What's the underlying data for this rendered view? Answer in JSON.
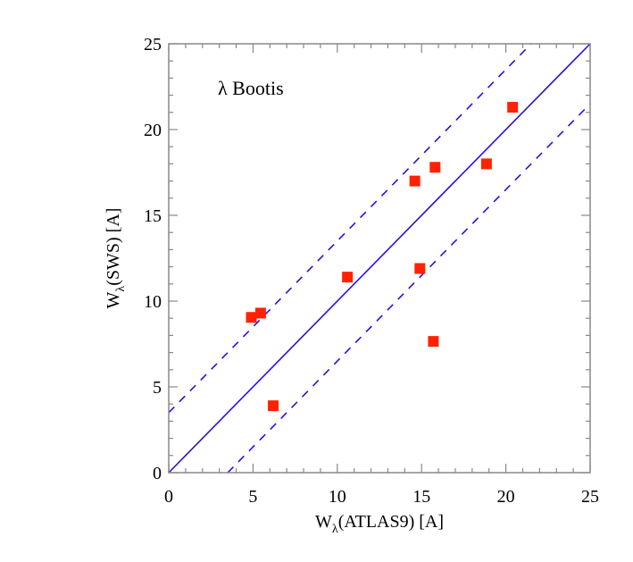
{
  "chart_data": {
    "type": "scatter",
    "title": "",
    "annotation": "λ Bootis",
    "xlabel": "W_λ(ATLAS9) [A]",
    "ylabel": "W_λ(SWS) [A]",
    "xlabel_parts": {
      "main": "W",
      "sub": "λ",
      "rest": "(ATLAS9) [A]"
    },
    "ylabel_parts": {
      "main": "W",
      "sub": "λ",
      "rest": "(SWS) [A]"
    },
    "xlim": [
      0,
      25
    ],
    "ylim": [
      0,
      25
    ],
    "xticks": [
      0,
      5,
      10,
      15,
      20,
      25
    ],
    "yticks": [
      0,
      5,
      10,
      15,
      20,
      25
    ],
    "xtick_labels": [
      "0",
      "5",
      "10",
      "15",
      "20",
      "25"
    ],
    "ytick_labels": [
      "0",
      "5",
      "10",
      "15",
      "20",
      "25"
    ],
    "minor_ticks_per_major": 5,
    "grid": false,
    "series": [
      {
        "name": "data",
        "marker": "square",
        "color": "#ff2200",
        "x": [
          4.9,
          5.45,
          6.2,
          10.6,
          14.6,
          15.8,
          14.9,
          15.7,
          18.85,
          20.4
        ],
        "y": [
          9.05,
          9.3,
          3.9,
          11.4,
          17.0,
          17.8,
          11.9,
          7.65,
          18.0,
          21.3
        ]
      }
    ],
    "lines": [
      {
        "name": "one-to-one",
        "style": "solid",
        "color": "#2a10e0",
        "slope": 1,
        "intercept": 0
      },
      {
        "name": "upper-bound",
        "style": "dashed",
        "color": "#2a10e0",
        "slope": 1,
        "intercept": 3.5
      },
      {
        "name": "lower-bound",
        "style": "dashed",
        "color": "#2a10e0",
        "slope": 1,
        "intercept": -3.5
      }
    ],
    "colors": {
      "axis": "#888888",
      "text": "#000000",
      "marker": "#ff2200",
      "line": "#2a10e0"
    }
  }
}
